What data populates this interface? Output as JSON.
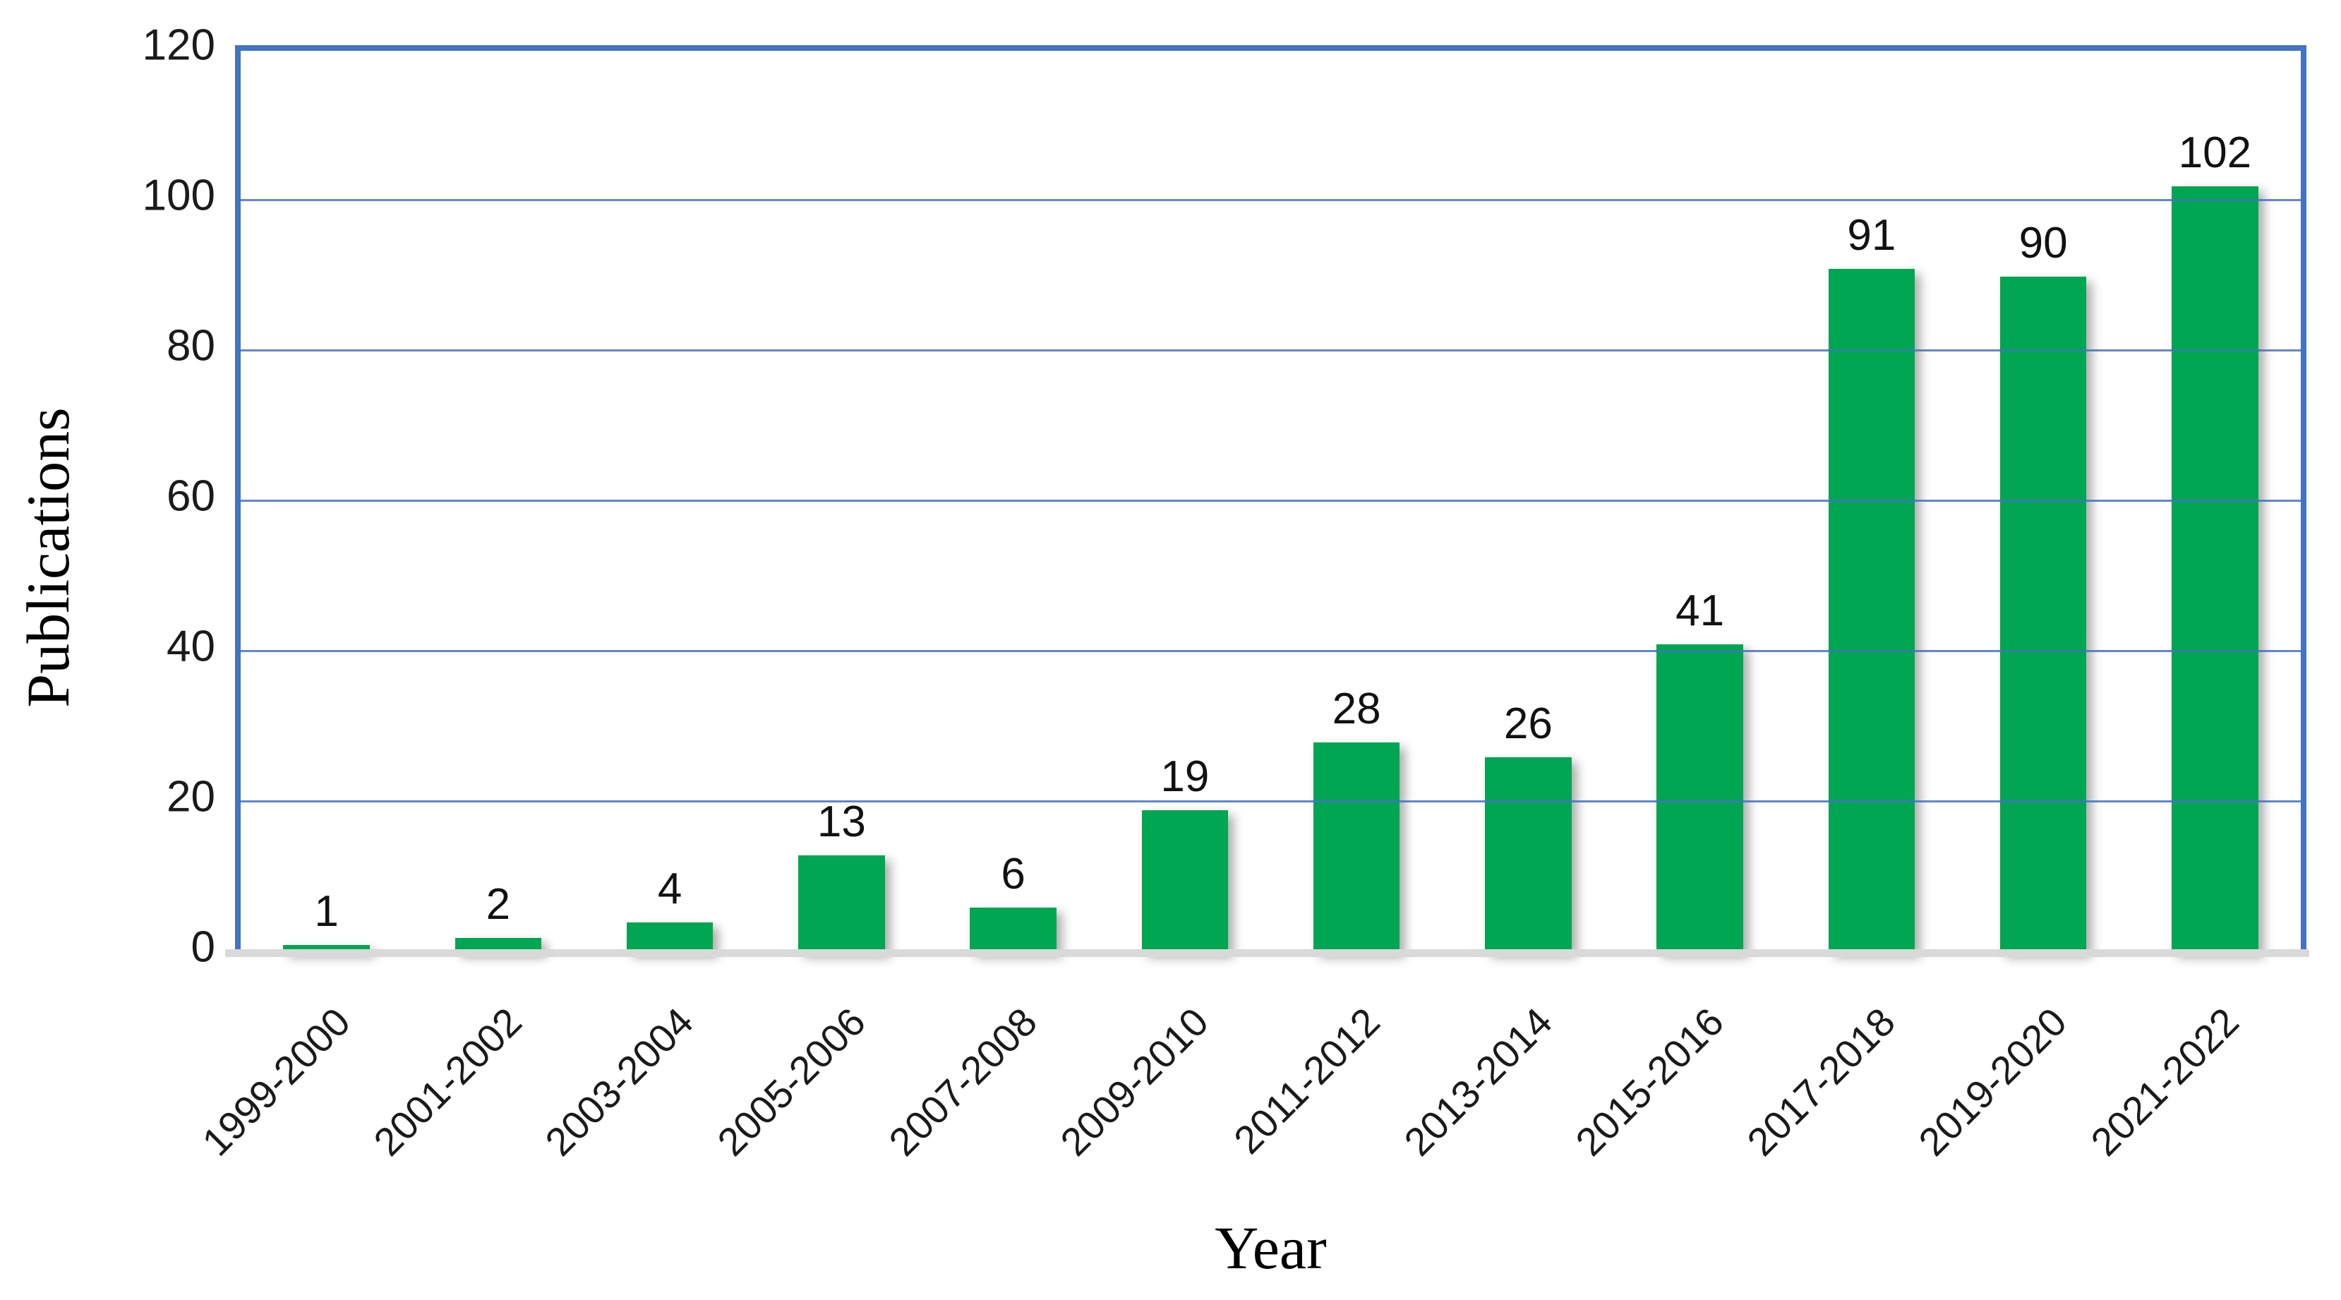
{
  "chart_data": {
    "type": "bar",
    "title": "",
    "xlabel": "Year",
    "ylabel": "Publications",
    "categories": [
      "1999-2000",
      "2001-2002",
      "2003-2004",
      "2005-2006",
      "2007-2008",
      "2009-2010",
      "2011-2012",
      "2013-2014",
      "2015-2016",
      "2017-2018",
      "2019-2020",
      "2021-2022"
    ],
    "values": [
      1,
      2,
      4,
      13,
      6,
      19,
      28,
      26,
      41,
      91,
      90,
      102
    ],
    "data_labels_shown": true,
    "ylim": [
      0,
      120
    ],
    "yticks": [
      0,
      20,
      40,
      60,
      80,
      100,
      120
    ],
    "grid": "horizontal",
    "legend": "none",
    "colors": {
      "bar_fill": "#00A651",
      "gridline": "#4472C4",
      "plot_border": "#4472C4",
      "x_baseline": "#D9D9D9",
      "text": "#1a1a1a"
    }
  }
}
